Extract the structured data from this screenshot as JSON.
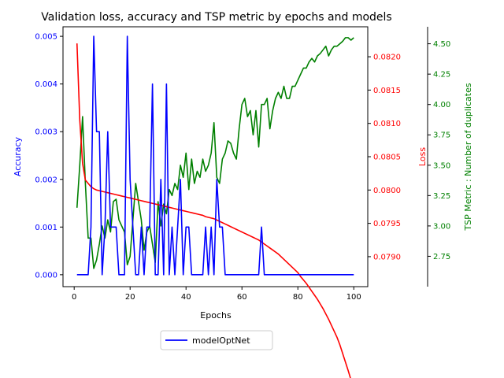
{
  "chart_data": {
    "type": "line",
    "title": "Validation loss, accuracy and TSP metric by epochs and models",
    "xlabel": "Epochs",
    "xlim": [
      -4,
      105
    ],
    "x_ticks": [
      "0",
      "20",
      "40",
      "60",
      "80",
      "100"
    ],
    "legend_position": "below-center",
    "legend": [
      "modelOptNet"
    ],
    "axes": {
      "accuracy": {
        "label": "Accuracy",
        "color": "#0000ff",
        "ylim": [
          -0.00025,
          0.0052
        ],
        "ticks": [
          "0.000",
          "0.001",
          "0.002",
          "0.003",
          "0.004",
          "0.005"
        ]
      },
      "loss": {
        "label": "Loss",
        "color": "#ff0000",
        "ylim": [
          0.07855,
          0.08245
        ],
        "ticks": [
          "0.0790",
          "0.0795",
          "0.0800",
          "0.0805",
          "0.0810",
          "0.0815",
          "0.0820"
        ]
      },
      "tsp": {
        "label": "TSP Metric : Number of duplicates",
        "color": "#008000",
        "ylim": [
          2.5,
          4.64
        ],
        "ticks": [
          "2.75",
          "3.00",
          "3.25",
          "3.50",
          "3.75",
          "4.00",
          "4.25",
          "4.50"
        ]
      }
    },
    "x": [
      1,
      2,
      3,
      4,
      5,
      6,
      7,
      8,
      9,
      10,
      11,
      12,
      13,
      14,
      15,
      16,
      17,
      18,
      19,
      20,
      21,
      22,
      23,
      24,
      25,
      26,
      27,
      28,
      29,
      30,
      31,
      32,
      33,
      34,
      35,
      36,
      37,
      38,
      39,
      40,
      41,
      42,
      43,
      44,
      45,
      46,
      47,
      48,
      49,
      50,
      51,
      52,
      53,
      54,
      55,
      56,
      57,
      58,
      59,
      60,
      61,
      62,
      63,
      64,
      65,
      66,
      67,
      68,
      69,
      70,
      71,
      72,
      73,
      74,
      75,
      76,
      77,
      78,
      79,
      80,
      81,
      82,
      83,
      84,
      85,
      86,
      87,
      88,
      89,
      90,
      91,
      92,
      93,
      94,
      95,
      96,
      97,
      98,
      99,
      100
    ],
    "series": [
      {
        "name": "modelOptNet",
        "axis": "accuracy",
        "values": [
          0,
          0,
          0,
          0,
          0,
          0.001,
          0.005,
          0.003,
          0.003,
          0,
          0.001,
          0.003,
          0.001,
          0.001,
          0.001,
          0,
          0,
          0,
          0.005,
          0.002,
          0.001,
          0,
          0,
          0.001,
          0,
          0.001,
          0.001,
          0.004,
          0,
          0,
          0.002,
          0,
          0.004,
          0,
          0.001,
          0,
          0.001,
          0.002,
          0,
          0.001,
          0.001,
          0,
          0,
          0,
          0,
          0,
          0.001,
          0,
          0.001,
          0,
          0.002,
          0.001,
          0.001,
          0,
          0,
          0,
          0,
          0,
          0,
          0,
          0,
          0,
          0,
          0,
          0,
          0,
          0.001,
          0,
          0,
          0,
          0,
          0,
          0,
          0,
          0,
          0,
          0,
          0,
          0,
          0,
          0,
          0,
          0,
          0,
          0,
          0,
          0,
          0,
          0,
          0,
          0,
          0,
          0,
          0,
          0,
          0,
          0,
          0,
          0,
          0
        ]
      },
      {
        "axis": "loss",
        "values": [
          0.0822,
          0.08105,
          0.0804,
          0.08015,
          0.0801,
          0.08005,
          0.08002,
          0.08,
          0.07999,
          0.07998,
          0.07997,
          0.07996,
          0.07995,
          0.07994,
          0.07993,
          0.07992,
          0.07991,
          0.0799,
          0.07989,
          0.07988,
          0.07987,
          0.07986,
          0.07985,
          0.07984,
          0.07983,
          0.07982,
          0.07981,
          0.0798,
          0.07979,
          0.07978,
          0.07977,
          0.07976,
          0.07975,
          0.07974,
          0.07973,
          0.07972,
          0.07971,
          0.0797,
          0.07969,
          0.07968,
          0.07967,
          0.07966,
          0.07965,
          0.07964,
          0.07963,
          0.07962,
          0.0796,
          0.07959,
          0.07958,
          0.07957,
          0.07955,
          0.07953,
          0.07951,
          0.07949,
          0.07947,
          0.07945,
          0.07943,
          0.07941,
          0.07939,
          0.07937,
          0.07935,
          0.07933,
          0.07931,
          0.07929,
          0.07927,
          0.07925,
          0.07922,
          0.07919,
          0.07916,
          0.07913,
          0.0791,
          0.07907,
          0.07904,
          0.079,
          0.07896,
          0.07892,
          0.07888,
          0.07884,
          0.0788,
          0.07876,
          0.0787,
          0.07865,
          0.0786,
          0.07854,
          0.07848,
          0.07842,
          0.07836,
          0.07829,
          0.07822,
          0.07814,
          0.07806,
          0.07797,
          0.07788,
          0.07779,
          0.07768,
          0.07755,
          0.07742,
          0.07729,
          0.07715,
          0.077
        ]
      },
      {
        "axis": "tsp",
        "values": [
          3.15,
          3.5,
          3.9,
          3.35,
          2.9,
          2.9,
          2.65,
          2.72,
          2.85,
          3.0,
          2.9,
          3.05,
          2.95,
          3.2,
          3.22,
          3.05,
          3.0,
          2.95,
          2.68,
          2.75,
          3.05,
          3.35,
          3.2,
          3.05,
          2.8,
          2.95,
          3.0,
          2.85,
          2.7,
          3.2,
          3.0,
          3.18,
          3.1,
          3.3,
          3.25,
          3.35,
          3.3,
          3.5,
          3.4,
          3.6,
          3.3,
          3.55,
          3.35,
          3.45,
          3.4,
          3.55,
          3.45,
          3.5,
          3.6,
          3.85,
          3.4,
          3.35,
          3.55,
          3.6,
          3.7,
          3.68,
          3.6,
          3.55,
          3.8,
          4.0,
          4.05,
          3.9,
          3.95,
          3.75,
          3.95,
          3.65,
          4.0,
          4.0,
          4.05,
          3.8,
          3.95,
          4.05,
          4.1,
          4.05,
          4.15,
          4.05,
          4.05,
          4.15,
          4.15,
          4.2,
          4.25,
          4.3,
          4.3,
          4.35,
          4.38,
          4.35,
          4.4,
          4.42,
          4.45,
          4.48,
          4.4,
          4.45,
          4.48,
          4.48,
          4.5,
          4.52,
          4.55,
          4.55,
          4.53,
          4.55
        ]
      }
    ]
  }
}
